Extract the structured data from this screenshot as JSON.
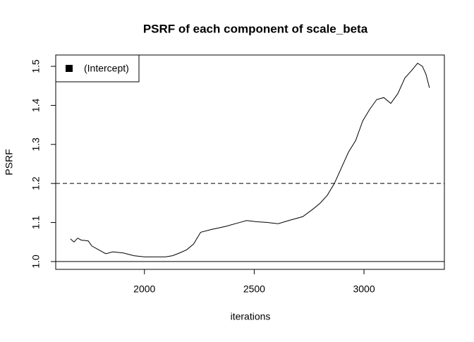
{
  "chart_data": {
    "type": "line",
    "title": "PSRF of each component of scale_beta",
    "x_label": "iterations",
    "y_label": "PSRF",
    "x": [
      1663,
      1679,
      1696,
      1712,
      1744,
      1760,
      1792,
      1824,
      1856,
      1904,
      1952,
      2000,
      2048,
      2096,
      2128,
      2160,
      2192,
      2224,
      2256,
      2304,
      2369,
      2433,
      2465,
      2513,
      2561,
      2609,
      2657,
      2721,
      2769,
      2801,
      2833,
      2865,
      2897,
      2929,
      2962,
      2994,
      3026,
      3058,
      3090,
      3122,
      3154,
      3186,
      3218,
      3244,
      3266,
      3282,
      3298
    ],
    "series": [
      {
        "name": "(Intercept)",
        "color": "#000000",
        "values": [
          1.058,
          1.05,
          1.06,
          1.055,
          1.053,
          1.04,
          1.03,
          1.02,
          1.025,
          1.022,
          1.015,
          1.012,
          1.012,
          1.012,
          1.015,
          1.022,
          1.03,
          1.045,
          1.075,
          1.082,
          1.09,
          1.1,
          1.105,
          1.102,
          1.1,
          1.097,
          1.105,
          1.115,
          1.135,
          1.15,
          1.17,
          1.2,
          1.24,
          1.28,
          1.31,
          1.36,
          1.39,
          1.415,
          1.42,
          1.405,
          1.43,
          1.47,
          1.49,
          1.508,
          1.5,
          1.48,
          1.445
        ]
      }
    ],
    "reference_lines": [
      {
        "value": 1.2,
        "dashed": true
      },
      {
        "value": 1,
        "dashed": false
      }
    ],
    "xlim": [
      1596,
      3366
    ],
    "xticks": [
      2000,
      2500,
      3000
    ],
    "ylim": [
      0.98,
      1.529
    ],
    "yticks": [
      {
        "value": 1,
        "label": "1.0"
      },
      1.1,
      1.2,
      1.3,
      1.4,
      1.5
    ],
    "legend": "top-left"
  }
}
